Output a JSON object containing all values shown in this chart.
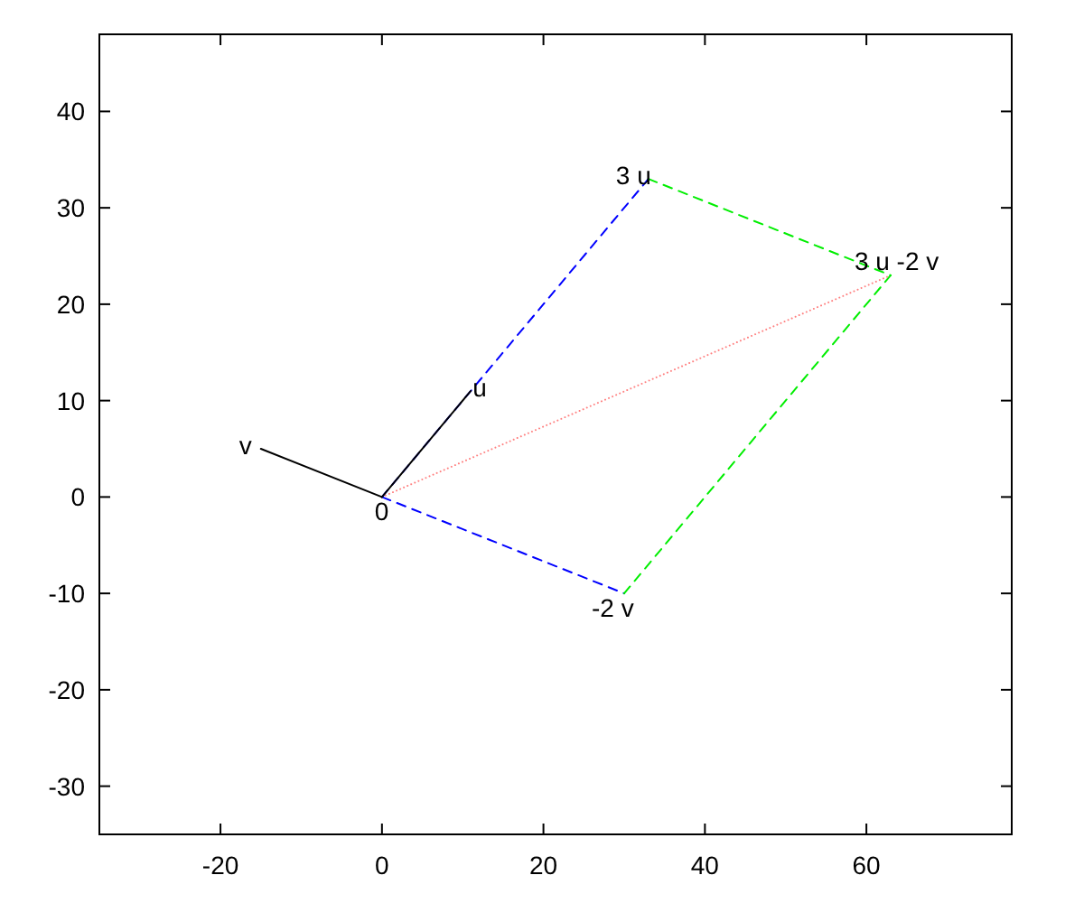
{
  "chart_data": {
    "type": "line",
    "xlim": [
      -35,
      78
    ],
    "ylim": [
      -35,
      48
    ],
    "xticks": [
      -20,
      0,
      20,
      40,
      60
    ],
    "yticks": [
      -30,
      -20,
      -10,
      0,
      10,
      20,
      30,
      40
    ],
    "grid": false,
    "marker": "none",
    "series": [
      {
        "color": "#0000ff",
        "x": [
          0,
          33
        ],
        "values": [
          0,
          33
        ],
        "line_style": "dashed"
      },
      {
        "color": "#0000ff",
        "x": [
          0,
          30
        ],
        "values": [
          0,
          -10
        ],
        "line_style": "dashed"
      },
      {
        "color": "#00ee00",
        "x": [
          33,
          63
        ],
        "values": [
          33,
          23
        ],
        "line_style": "dashed"
      },
      {
        "color": "#00ee00",
        "x": [
          30,
          63
        ],
        "values": [
          -10,
          23
        ],
        "line_style": "dashed"
      },
      {
        "color": "#ff8080",
        "x": [
          0,
          63
        ],
        "values": [
          0,
          23
        ],
        "line_style": "dotted"
      },
      {
        "color": "#000000",
        "x": [
          0,
          11
        ],
        "values": [
          0,
          11
        ],
        "line_style": "solid"
      },
      {
        "color": "#000000",
        "x": [
          0,
          -15
        ],
        "values": [
          0,
          5
        ],
        "line_style": "solid"
      }
    ],
    "annotations": [
      {
        "text": "0",
        "x": 0,
        "y": 0
      },
      {
        "text": "u",
        "x": 11,
        "y": 11
      },
      {
        "text": "v",
        "x": -15,
        "y": 5
      },
      {
        "text": "3 u",
        "x": 33,
        "y": 33
      },
      {
        "text": "-2 v",
        "x": 30,
        "y": -10
      },
      {
        "text": "3 u -2 v",
        "x": 63,
        "y": 23
      }
    ]
  }
}
